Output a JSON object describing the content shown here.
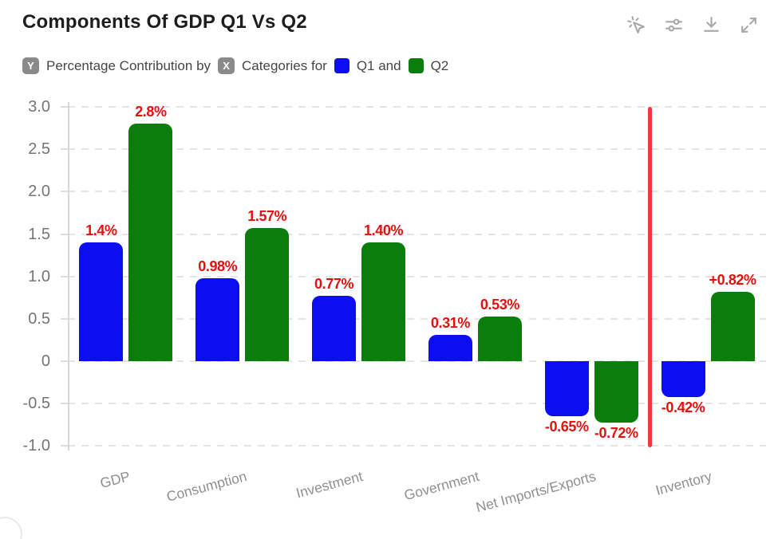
{
  "header": {
    "title": "Components Of GDP Q1 Vs Q2",
    "toolbar": [
      {
        "icon": "interactive-cursor-icon"
      },
      {
        "icon": "adjust-sliders-icon"
      },
      {
        "icon": "download-icon"
      },
      {
        "icon": "expand-icon"
      }
    ]
  },
  "subtitle": {
    "y_badge": "Y",
    "y_text": "Percentage Contribution by",
    "x_badge": "X",
    "x_text": "Categories for",
    "legend": [
      {
        "label": "Q1 and",
        "color": "#0d0df2"
      },
      {
        "label": "Q2",
        "color": "#0b7d0c"
      }
    ]
  },
  "chart_data": {
    "type": "bar",
    "title": "Components Of GDP Q1 Vs Q2",
    "xlabel": "Categories",
    "ylabel": "Percentage Contribution",
    "categories": [
      "GDP",
      "Consumption",
      "Investment",
      "Government",
      "Net Imports/Exports",
      "Inventory"
    ],
    "series": [
      {
        "name": "Q1",
        "color": "#0d0df2",
        "values": [
          1.4,
          0.98,
          0.77,
          0.31,
          -0.65,
          -0.42
        ],
        "labels": [
          "1.4%",
          "0.98%",
          "0.77%",
          "0.31%",
          "-0.65%",
          "-0.42%"
        ]
      },
      {
        "name": "Q2",
        "color": "#0b7d0c",
        "values": [
          2.8,
          1.57,
          1.4,
          0.53,
          -0.72,
          0.82
        ],
        "labels": [
          "2.8%",
          "1.57%",
          "1.40%",
          "0.53%",
          "-0.72%",
          "+0.82%"
        ]
      }
    ],
    "yticks": [
      "3.0",
      "2.5",
      "2.0",
      "1.5",
      "1.0",
      "0.5",
      "0",
      "-0.5",
      "-1.0"
    ],
    "ytick_values": [
      3.0,
      2.5,
      2.0,
      1.5,
      1.0,
      0.5,
      0,
      -0.5,
      -1.0
    ],
    "ylim": [
      -1.0,
      3.0
    ],
    "grid": true,
    "legend_position": "top",
    "value_label_color": "#e60f0f",
    "annotations": {
      "separator_before_category": "Inventory",
      "separator_color": "#ee3a3a"
    }
  }
}
